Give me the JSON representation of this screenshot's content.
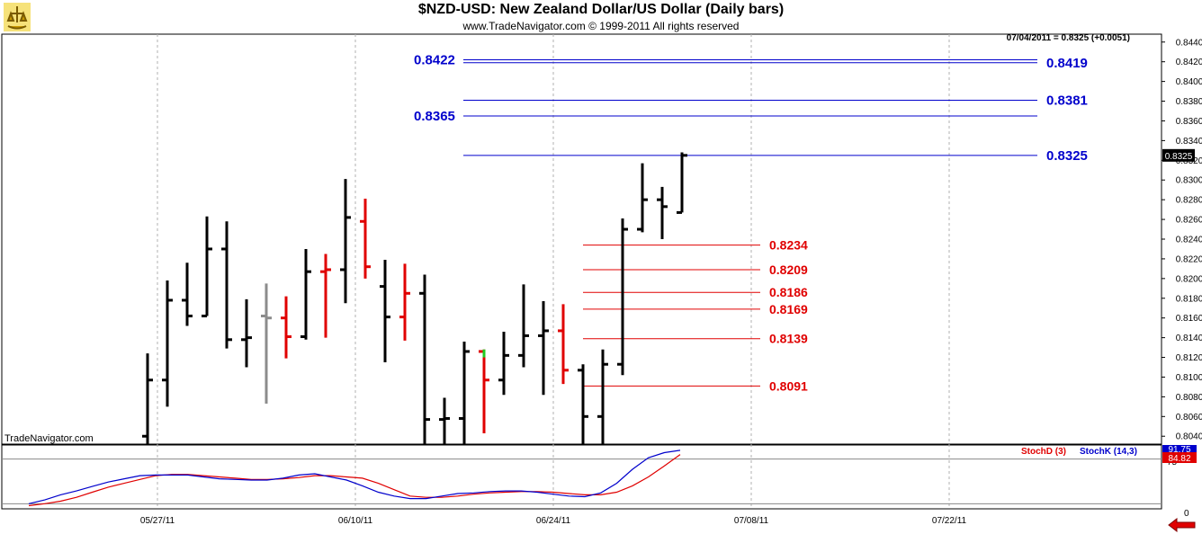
{
  "header": {
    "title": "$NZD-USD:  New Zealand Dollar/US Dollar  (Daily bars)",
    "copyright": "www.TradeNavigator.com © 1999-2011 All rights reserved",
    "last_price": "07/04/2011 = 0.8325 (+0.0051)"
  },
  "watermark": "TradeNavigator.com",
  "indicator": {
    "legend_d": "StochD (3)",
    "legend_k": "StochK (14,3)",
    "axis_labels": [
      "75",
      "0"
    ],
    "value_d": "84.82",
    "value_k": "91.75",
    "colors": {
      "d": "#e00000",
      "k": "#0000cc"
    }
  },
  "colors": {
    "resistance": "#0000cc",
    "support": "#e00000",
    "up_bar": "#000000",
    "down_bar": "#e00000"
  },
  "chart_data": [
    {
      "type": "ohlc",
      "title": "$NZD-USD:  New Zealand Dollar/US Dollar  (Daily bars)",
      "x_tick_labels": [
        "05/27/11",
        "06/10/11",
        "06/24/11",
        "07/08/11",
        "07/22/11"
      ],
      "y_tick_labels": [
        "0.8440",
        "0.8420",
        "0.8400",
        "0.8380",
        "0.8360",
        "0.8340",
        "0.8320",
        "0.8300",
        "0.8280",
        "0.8260",
        "0.8240",
        "0.8220",
        "0.8200",
        "0.8180",
        "0.8160",
        "0.8140",
        "0.8120",
        "0.8100",
        "0.8080",
        "0.8060",
        "0.8040"
      ],
      "ylim": [
        0.8032,
        0.8448
      ],
      "last_value_label": "0.8325",
      "bars": [
        {
          "o": 0.804,
          "h": 0.8124,
          "l": 0.803,
          "c": 0.8097,
          "color": "black"
        },
        {
          "o": 0.8097,
          "h": 0.8198,
          "l": 0.807,
          "c": 0.8178,
          "color": "black"
        },
        {
          "o": 0.8178,
          "h": 0.8216,
          "l": 0.8152,
          "c": 0.8162,
          "color": "black"
        },
        {
          "o": 0.8162,
          "h": 0.8263,
          "l": 0.8162,
          "c": 0.823,
          "color": "black"
        },
        {
          "o": 0.823,
          "h": 0.8258,
          "l": 0.8129,
          "c": 0.8138,
          "color": "black"
        },
        {
          "o": 0.8138,
          "h": 0.8179,
          "l": 0.811,
          "c": 0.814,
          "color": "black"
        },
        {
          "o": 0.8162,
          "h": 0.8195,
          "l": 0.8073,
          "c": 0.816,
          "color": "gray"
        },
        {
          "o": 0.816,
          "h": 0.8182,
          "l": 0.8119,
          "c": 0.8141,
          "color": "red"
        },
        {
          "o": 0.8141,
          "h": 0.823,
          "l": 0.8138,
          "c": 0.8207,
          "color": "black"
        },
        {
          "o": 0.8207,
          "h": 0.8225,
          "l": 0.814,
          "c": 0.8209,
          "color": "red"
        },
        {
          "o": 0.8209,
          "h": 0.8301,
          "l": 0.8175,
          "c": 0.8262,
          "color": "black"
        },
        {
          "o": 0.8258,
          "h": 0.8281,
          "l": 0.82,
          "c": 0.8212,
          "color": "red"
        },
        {
          "o": 0.8192,
          "h": 0.8219,
          "l": 0.8115,
          "c": 0.8161,
          "color": "black"
        },
        {
          "o": 0.8161,
          "h": 0.8215,
          "l": 0.8137,
          "c": 0.8185,
          "color": "red"
        },
        {
          "o": 0.8185,
          "h": 0.8204,
          "l": 0.803,
          "c": 0.8057,
          "color": "black"
        },
        {
          "o": 0.8057,
          "h": 0.8079,
          "l": 0.803,
          "c": 0.8058,
          "color": "black"
        },
        {
          "o": 0.8058,
          "h": 0.8136,
          "l": 0.803,
          "c": 0.8126,
          "color": "black"
        },
        {
          "o": 0.8126,
          "h": 0.8128,
          "l": 0.8043,
          "c": 0.8097,
          "color": "red"
        },
        {
          "o": 0.8097,
          "h": 0.8146,
          "l": 0.8082,
          "c": 0.8122,
          "color": "black"
        },
        {
          "o": 0.8122,
          "h": 0.8194,
          "l": 0.811,
          "c": 0.8142,
          "color": "black"
        },
        {
          "o": 0.8142,
          "h": 0.8177,
          "l": 0.8082,
          "c": 0.8147,
          "color": "black"
        },
        {
          "o": 0.8147,
          "h": 0.8174,
          "l": 0.8093,
          "c": 0.8107,
          "color": "red"
        },
        {
          "o": 0.8107,
          "h": 0.8113,
          "l": 0.803,
          "c": 0.806,
          "color": "black"
        },
        {
          "o": 0.806,
          "h": 0.8128,
          "l": 0.803,
          "c": 0.8113,
          "color": "black"
        },
        {
          "o": 0.8113,
          "h": 0.8261,
          "l": 0.8102,
          "c": 0.825,
          "color": "black"
        },
        {
          "o": 0.825,
          "h": 0.8317,
          "l": 0.8247,
          "c": 0.828,
          "color": "black"
        },
        {
          "o": 0.828,
          "h": 0.8293,
          "l": 0.824,
          "c": 0.8273,
          "color": "black"
        },
        {
          "o": 0.8267,
          "h": 0.8328,
          "l": 0.8267,
          "c": 0.8325,
          "color": "black"
        }
      ],
      "levels": [
        {
          "value": 0.8422,
          "label": "0.8422",
          "color": "#0000cc",
          "side": "left"
        },
        {
          "value": 0.8419,
          "label": "0.8419",
          "color": "#0000cc",
          "side": "right"
        },
        {
          "value": 0.8381,
          "label": "0.8381",
          "color": "#0000cc",
          "side": "right"
        },
        {
          "value": 0.8365,
          "label": "0.8365",
          "color": "#0000cc",
          "side": "left"
        },
        {
          "value": 0.8325,
          "label": "0.8325",
          "color": "#0000cc",
          "side": "right"
        },
        {
          "value": 0.8234,
          "label": "0.8234",
          "color": "#e00000",
          "side": "right"
        },
        {
          "value": 0.8209,
          "label": "0.8209",
          "color": "#e00000",
          "side": "right"
        },
        {
          "value": 0.8186,
          "label": "0.8186",
          "color": "#e00000",
          "side": "right"
        },
        {
          "value": 0.8169,
          "label": "0.8169",
          "color": "#e00000",
          "side": "right"
        },
        {
          "value": 0.8139,
          "label": "0.8139",
          "color": "#e00000",
          "side": "right"
        },
        {
          "value": 0.8091,
          "label": "0.8091",
          "color": "#e00000",
          "side": "right"
        }
      ]
    },
    {
      "type": "line",
      "series": [
        {
          "name": "StochD (3)",
          "values": [
            5,
            8,
            12,
            18,
            26,
            34,
            40,
            46,
            52,
            54,
            54,
            52,
            50,
            48,
            46,
            46,
            47,
            49,
            52,
            52,
            50,
            48,
            40,
            30,
            20,
            18,
            18,
            20,
            23,
            25,
            26,
            27,
            27,
            26,
            24,
            22,
            22,
            26,
            36,
            50,
            67,
            85
          ]
        },
        {
          "name": "StochK (14,3)",
          "values": [
            8,
            14,
            22,
            28,
            35,
            42,
            47,
            52,
            53,
            53,
            53,
            50,
            47,
            46,
            45,
            45,
            48,
            53,
            55,
            50,
            45,
            36,
            26,
            20,
            16,
            16,
            20,
            24,
            25,
            27,
            28,
            28,
            26,
            23,
            20,
            19,
            25,
            40,
            62,
            80,
            88,
            91.75
          ]
        }
      ],
      "ylim": [
        0,
        100
      ]
    }
  ]
}
